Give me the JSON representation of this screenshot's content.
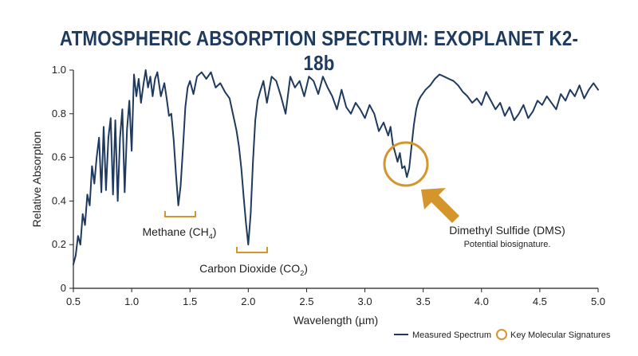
{
  "colors": {
    "series": "#1f3a5f",
    "accent": "#d4952c",
    "title": "#1f3a5f"
  },
  "chart_data": {
    "type": "line",
    "title": "ATMOSPHERIC ABSORPTION SPECTRUM: EXOPLANET K2-18b",
    "xlabel": "Wavelength (µm)",
    "ylabel": "Relative Absorption",
    "xlim": [
      0.5,
      5.0
    ],
    "ylim": [
      0,
      1.0
    ],
    "x_ticks": [
      "0.5",
      "1.0",
      "1.5",
      "2.0",
      "2.5",
      "3.0",
      "3.5",
      "4.0",
      "4.5",
      "5.0"
    ],
    "y_ticks": [
      "0",
      "0.2",
      "0.4",
      "0.6",
      "0.8",
      "1.0"
    ],
    "grid": false,
    "legend_position": "bottom-right",
    "series": [
      {
        "name": "Measured Spectrum",
        "x": [
          0.5,
          0.52,
          0.54,
          0.56,
          0.58,
          0.6,
          0.62,
          0.64,
          0.66,
          0.68,
          0.7,
          0.72,
          0.74,
          0.76,
          0.78,
          0.8,
          0.82,
          0.84,
          0.86,
          0.88,
          0.9,
          0.92,
          0.94,
          0.96,
          0.98,
          1.0,
          1.02,
          1.04,
          1.06,
          1.08,
          1.1,
          1.12,
          1.14,
          1.16,
          1.18,
          1.2,
          1.22,
          1.25,
          1.28,
          1.3,
          1.32,
          1.34,
          1.36,
          1.38,
          1.4,
          1.42,
          1.44,
          1.46,
          1.48,
          1.5,
          1.53,
          1.56,
          1.6,
          1.64,
          1.68,
          1.72,
          1.76,
          1.8,
          1.84,
          1.88,
          1.9,
          1.92,
          1.94,
          1.96,
          1.98,
          2.0,
          2.02,
          2.04,
          2.06,
          2.08,
          2.1,
          2.13,
          2.16,
          2.2,
          2.24,
          2.28,
          2.32,
          2.36,
          2.4,
          2.44,
          2.48,
          2.52,
          2.56,
          2.6,
          2.64,
          2.68,
          2.72,
          2.76,
          2.8,
          2.84,
          2.88,
          2.92,
          2.96,
          3.0,
          3.04,
          3.08,
          3.12,
          3.16,
          3.2,
          3.22,
          3.24,
          3.26,
          3.28,
          3.3,
          3.32,
          3.34,
          3.36,
          3.38,
          3.4,
          3.42,
          3.44,
          3.46,
          3.48,
          3.52,
          3.56,
          3.6,
          3.64,
          3.68,
          3.72,
          3.76,
          3.8,
          3.84,
          3.88,
          3.92,
          3.96,
          4.0,
          4.04,
          4.08,
          4.12,
          4.16,
          4.2,
          4.24,
          4.28,
          4.32,
          4.36,
          4.4,
          4.44,
          4.48,
          4.52,
          4.56,
          4.6,
          4.64,
          4.68,
          4.72,
          4.76,
          4.8,
          4.84,
          4.88,
          4.92,
          4.96,
          5.0
        ],
        "y": [
          0.11,
          0.15,
          0.24,
          0.2,
          0.34,
          0.29,
          0.43,
          0.38,
          0.56,
          0.48,
          0.6,
          0.69,
          0.44,
          0.74,
          0.45,
          0.69,
          0.78,
          0.43,
          0.77,
          0.4,
          0.69,
          0.82,
          0.44,
          0.73,
          0.86,
          0.63,
          0.98,
          0.88,
          0.96,
          0.85,
          0.93,
          1.0,
          0.92,
          0.97,
          0.88,
          0.96,
          0.99,
          0.88,
          0.94,
          0.87,
          0.79,
          0.8,
          0.68,
          0.52,
          0.38,
          0.47,
          0.64,
          0.83,
          0.92,
          0.95,
          0.89,
          0.97,
          0.99,
          0.96,
          0.99,
          0.92,
          0.94,
          0.9,
          0.87,
          0.77,
          0.72,
          0.65,
          0.55,
          0.42,
          0.3,
          0.2,
          0.34,
          0.58,
          0.77,
          0.86,
          0.9,
          0.95,
          0.85,
          0.97,
          0.95,
          0.88,
          0.8,
          0.97,
          0.92,
          0.95,
          0.88,
          0.97,
          0.95,
          0.89,
          0.97,
          0.92,
          0.88,
          0.82,
          0.91,
          0.83,
          0.8,
          0.85,
          0.82,
          0.78,
          0.84,
          0.8,
          0.72,
          0.76,
          0.7,
          0.74,
          0.66,
          0.62,
          0.58,
          0.62,
          0.55,
          0.56,
          0.51,
          0.55,
          0.65,
          0.75,
          0.82,
          0.86,
          0.88,
          0.91,
          0.93,
          0.96,
          0.98,
          0.97,
          0.96,
          0.95,
          0.93,
          0.9,
          0.88,
          0.85,
          0.87,
          0.84,
          0.9,
          0.86,
          0.82,
          0.85,
          0.79,
          0.83,
          0.77,
          0.8,
          0.84,
          0.78,
          0.81,
          0.86,
          0.84,
          0.88,
          0.85,
          0.82,
          0.89,
          0.86,
          0.91,
          0.88,
          0.93,
          0.87,
          0.91,
          0.94,
          0.91
        ]
      }
    ],
    "annotations": [
      {
        "label": "Methane (CH",
        "sub": "4",
        "close": ")"
      },
      {
        "label": "Carbon Dioxide (CO",
        "sub": "2",
        "close": ")"
      },
      {
        "label": "Dimethyl Sulfide (DMS)",
        "note": "Potential biosignature."
      }
    ],
    "legend": [
      {
        "label": "Measured Spectrum",
        "kind": "line"
      },
      {
        "label": "Key Molecular Signatures",
        "kind": "circle"
      }
    ]
  }
}
